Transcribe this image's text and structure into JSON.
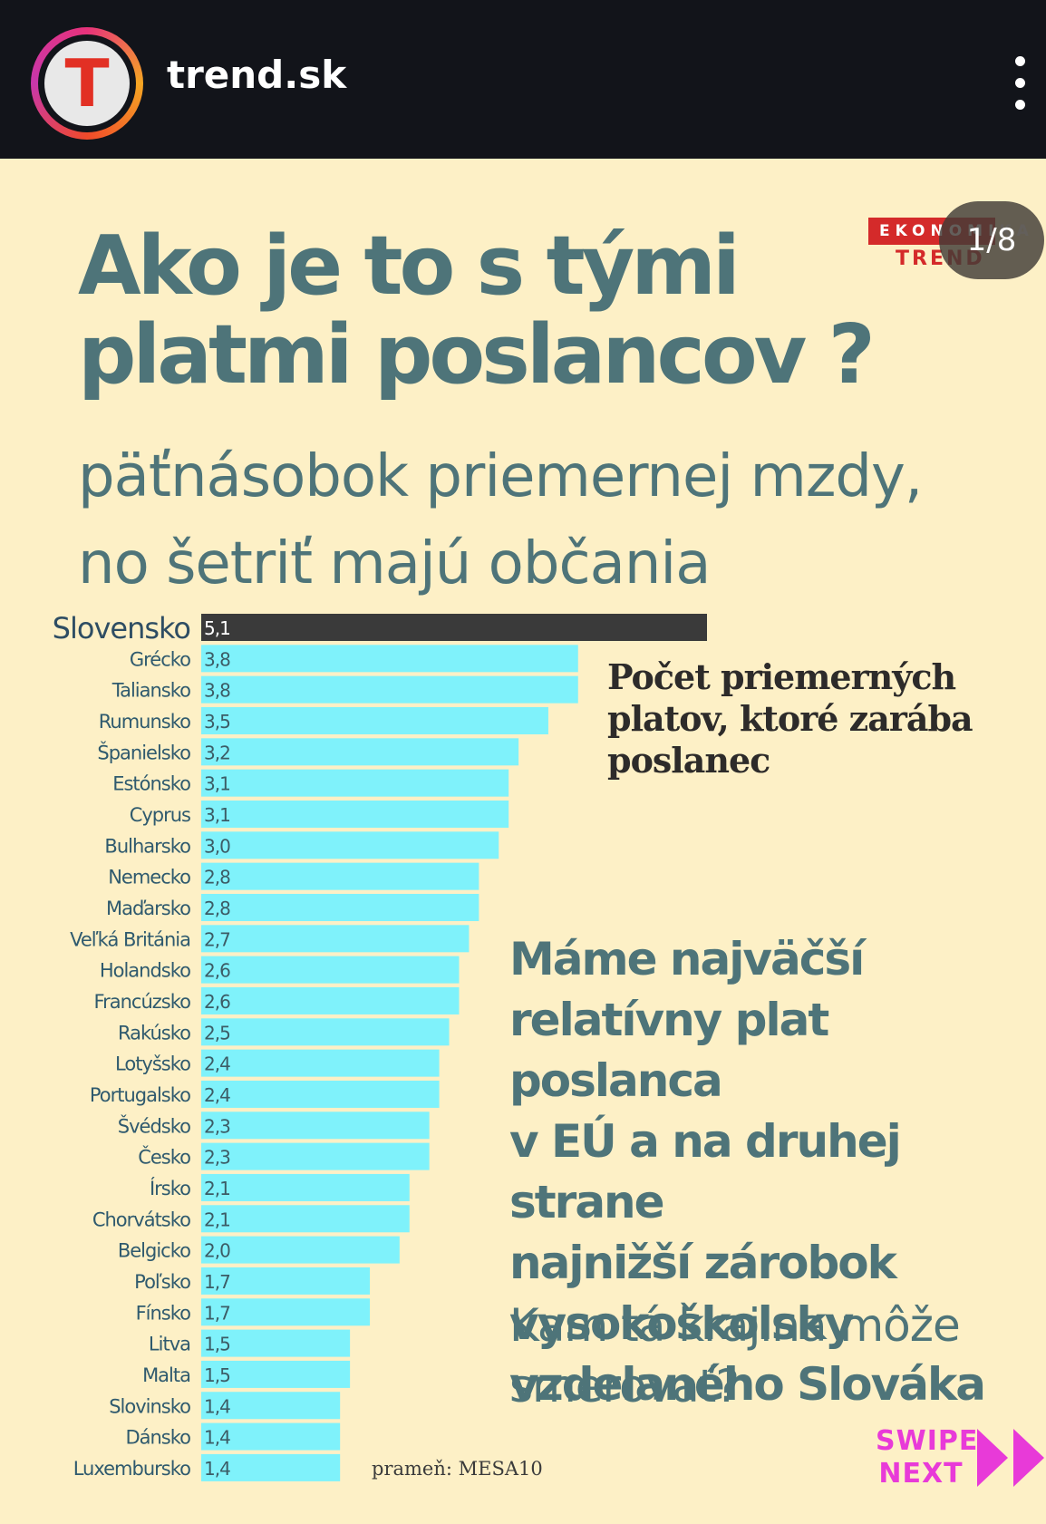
{
  "header": {
    "avatar_letter": "T",
    "account_name": "trend.sk",
    "more_icon": "more-vertical-icon"
  },
  "slide": {
    "counter": "1/8",
    "logo_top": "EKONOMIKA",
    "logo_bottom": "TREND",
    "headline_line1": "Ako je to s tými",
    "headline_line2": "platmi poslancov ?",
    "subheadline_line1": "päťnásobok priemernej mzdy,",
    "subheadline_line2": "no šetriť majú občania",
    "legend_line1": "Počet priemerných",
    "legend_line2": "platov, ktoré zarába",
    "legend_line3": "poslanec",
    "note_line1": "Máme najväčší",
    "note_line2": "relatívny plat poslanca",
    "note_line3": "v EÚ a na druhej strane",
    "note_line4": "najnižší zárobok",
    "note_line5": "vysokoškolsky",
    "note_line6": "vzdelaného Slováka",
    "question_line1": "Kam tá krajina môže",
    "question_line2": "smerovať?",
    "source": "prameň: MESA10",
    "swipe_line1": "SWIPE",
    "swipe_line2": "NEXT"
  },
  "colors": {
    "background": "#fdf0c6",
    "highlight_bar": "#3a3a3a",
    "bar": "#7ff2fb",
    "heading": "#4e7479",
    "swipe": "#e83ad8",
    "brand_red": "#d42a2a"
  },
  "chart_data": {
    "type": "bar",
    "orientation": "horizontal",
    "categories": [
      "Slovensko",
      "Grécko",
      "Taliansko",
      "Rumunsko",
      "Španielsko",
      "Estónsko",
      "Cyprus",
      "Bulharsko",
      "Nemecko",
      "Maďarsko",
      "Veľká Británia",
      "Holandsko",
      "Francúzsko",
      "Rakúsko",
      "Lotyšsko",
      "Portugalsko",
      "Švédsko",
      "Česko",
      "Írsko",
      "Chorvátsko",
      "Belgicko",
      "Poľsko",
      "Fínsko",
      "Litva",
      "Malta",
      "Slovinsko",
      "Dánsko",
      "Luxembursko"
    ],
    "values": [
      5.1,
      3.8,
      3.8,
      3.5,
      3.2,
      3.1,
      3.1,
      3.0,
      2.8,
      2.8,
      2.7,
      2.6,
      2.6,
      2.5,
      2.4,
      2.4,
      2.3,
      2.3,
      2.1,
      2.1,
      2.0,
      1.7,
      1.7,
      1.5,
      1.5,
      1.4,
      1.4,
      1.4
    ],
    "value_labels": [
      "5,1",
      "3,8",
      "3,8",
      "3,5",
      "3,2",
      "3,1",
      "3,1",
      "3,0",
      "2,8",
      "2,8",
      "2,7",
      "2,6",
      "2,6",
      "2,5",
      "2,4",
      "2,4",
      "2,3",
      "2,3",
      "2,1",
      "2,1",
      "2,0",
      "1,7",
      "1,7",
      "1,5",
      "1,5",
      "1,4",
      "1,4",
      "1,4"
    ],
    "highlight": "Slovensko",
    "xlim": [
      0,
      5.1
    ]
  }
}
